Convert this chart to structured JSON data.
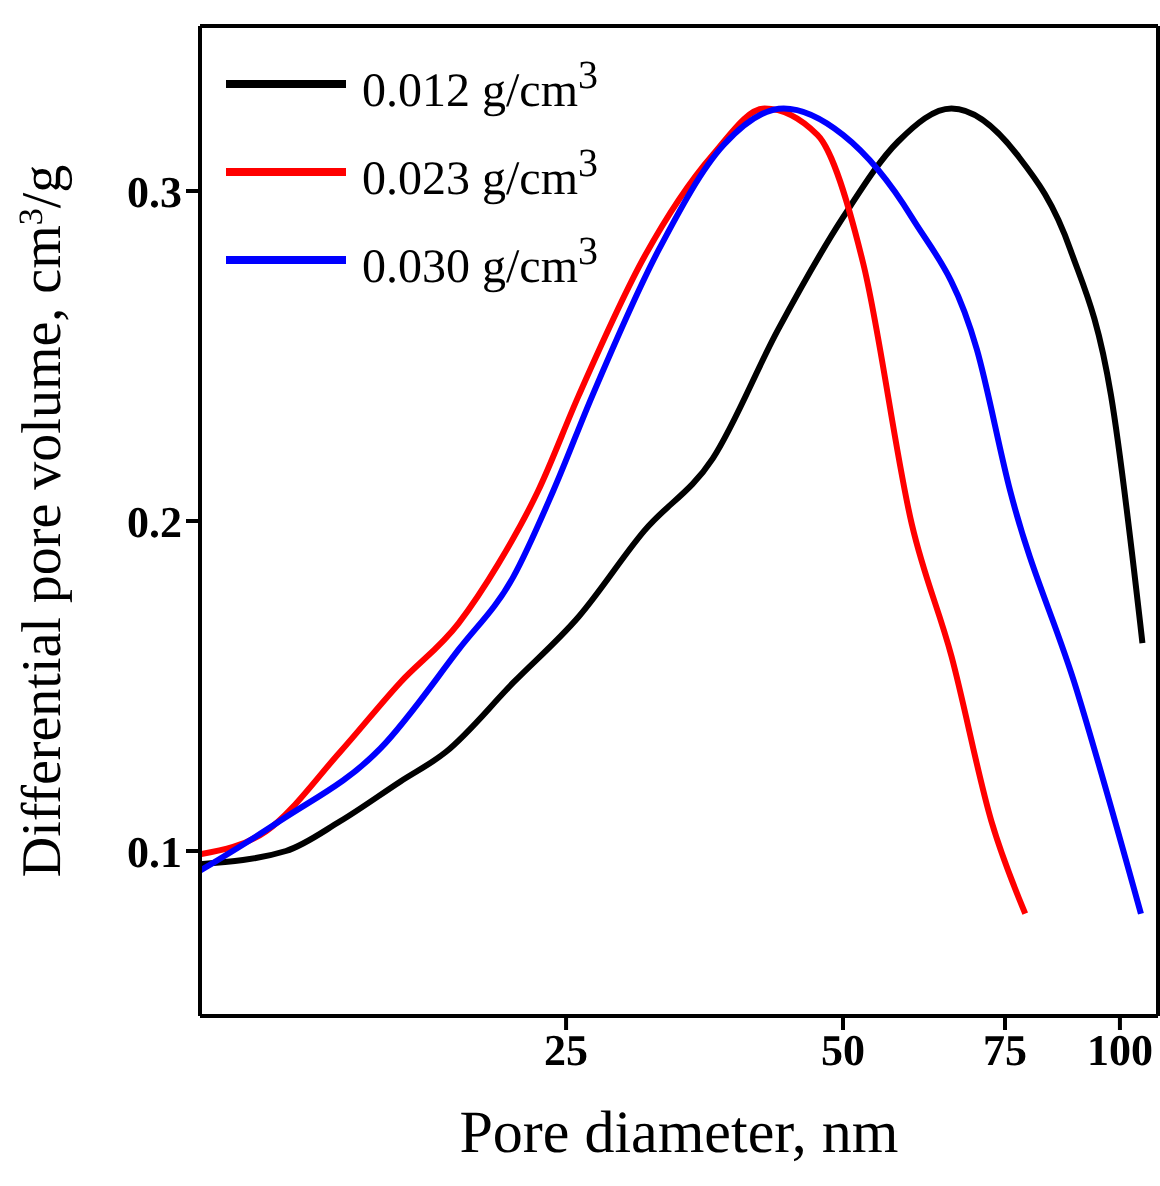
{
  "chart_data": {
    "type": "line",
    "xlabel": "Pore diameter, nm",
    "ylabel": "Differential pore volume, cm$^{3}$/g",
    "log": "x",
    "xlim": [
      10,
      110
    ],
    "xticks": [
      25,
      50,
      75,
      100
    ],
    "ylim": [
      0.05,
      0.35
    ],
    "yticks": [
      0.1,
      0.2,
      0.3
    ],
    "legend": "top left",
    "grid": false,
    "marker": "none",
    "line_style": "solid",
    "series": [
      {
        "name": "0.012 g/cm$^{3}$",
        "color": "#000000",
        "x": [
          10,
          12.4,
          14.2,
          16.5,
          18.5,
          21.9,
          25.8,
          30.4,
          36.1,
          42.5,
          50,
          57.4,
          65.6,
          77.3,
          88.4,
          97.8,
          105.8
        ],
        "values": [
          0.096,
          0.1,
          0.109,
          0.121,
          0.13,
          0.151,
          0.171,
          0.197,
          0.219,
          0.258,
          0.292,
          0.315,
          0.325,
          0.311,
          0.282,
          0.238,
          0.163
        ]
      },
      {
        "name": "0.023 g/cm$^{3}$",
        "color": "#ff0000",
        "x": [
          10,
          11.8,
          14.2,
          16.5,
          19.1,
          21.1,
          23.3,
          25.8,
          30.4,
          36.1,
          41.1,
          46.9,
          52.6,
          59.4,
          65.6,
          72.5,
          78.9
        ],
        "values": [
          0.099,
          0.106,
          0.13,
          0.151,
          0.169,
          0.187,
          0.209,
          0.238,
          0.28,
          0.311,
          0.325,
          0.317,
          0.278,
          0.199,
          0.159,
          0.109,
          0.081
        ]
      },
      {
        "name": "0.030 g/cm$^{3}$",
        "color": "#0000ff",
        "x": [
          10,
          12.2,
          15.7,
          19.1,
          21.9,
          24.2,
          26.7,
          31.5,
          37.1,
          43.1,
          50,
          59.4,
          69.9,
          76,
          89.7,
          105.4
        ],
        "values": [
          0.094,
          0.109,
          0.131,
          0.161,
          0.183,
          0.209,
          0.238,
          0.282,
          0.314,
          0.325,
          0.317,
          0.292,
          0.252,
          0.209,
          0.149,
          0.081
        ]
      }
    ]
  }
}
